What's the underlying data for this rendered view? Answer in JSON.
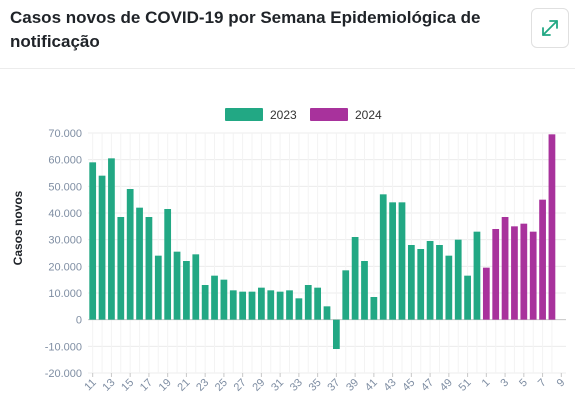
{
  "title": "Casos novos de COVID-19 por Semana Epidemiológica de notificação",
  "icons": {
    "expand": "expand-arrows-icon"
  },
  "colors": {
    "s2023": "#22a884",
    "s2024": "#a8329c",
    "grid": "#ececec",
    "tick": "#7f8ea3",
    "title": "#1f2328"
  },
  "chart_data": {
    "type": "bar",
    "ylabel": "Casos novos",
    "xlabel": "",
    "ylim": [
      -20000,
      70000
    ],
    "yticks": [
      -20000,
      -10000,
      0,
      10000,
      20000,
      30000,
      40000,
      50000,
      60000,
      70000
    ],
    "ytick_labels": [
      "-20.000",
      "-10.000",
      "0",
      "10.000",
      "20.000",
      "30.000",
      "40.000",
      "50.000",
      "60.000",
      "70.000"
    ],
    "legend_position": "top-center",
    "grid": true,
    "series": [
      {
        "name": "2023",
        "color": "#22a884",
        "weeks": [
          11,
          12,
          13,
          14,
          15,
          16,
          17,
          18,
          19,
          20,
          21,
          22,
          23,
          24,
          25,
          26,
          27,
          28,
          29,
          30,
          31,
          32,
          33,
          34,
          35,
          36,
          37,
          38,
          39,
          40,
          41,
          42,
          43,
          44,
          45,
          46,
          47,
          48,
          49,
          50,
          51,
          52
        ],
        "values": [
          59000,
          54000,
          60500,
          38500,
          49000,
          42000,
          38500,
          24000,
          41500,
          25500,
          22000,
          24500,
          13000,
          16500,
          15000,
          11000,
          10500,
          10500,
          12000,
          11000,
          10500,
          11000,
          8000,
          13000,
          12000,
          5000,
          -11000,
          18500,
          31000,
          22000,
          8500,
          47000,
          44000,
          44000,
          28000,
          26500,
          29500,
          28000,
          24000,
          30000,
          16500,
          33000
        ]
      },
      {
        "name": "2024",
        "color": "#a8329c",
        "weeks": [
          1,
          2,
          3,
          4,
          5,
          6,
          7,
          8
        ],
        "values": [
          19500,
          34000,
          38500,
          35000,
          36000,
          33000,
          45000,
          69500
        ]
      }
    ],
    "x_tick_labels": [
      "11",
      "13",
      "15",
      "17",
      "19",
      "21",
      "23",
      "25",
      "27",
      "29",
      "31",
      "33",
      "35",
      "37",
      "39",
      "41",
      "43",
      "45",
      "47",
      "49",
      "51",
      "1",
      "3",
      "5",
      "7",
      "9"
    ]
  }
}
